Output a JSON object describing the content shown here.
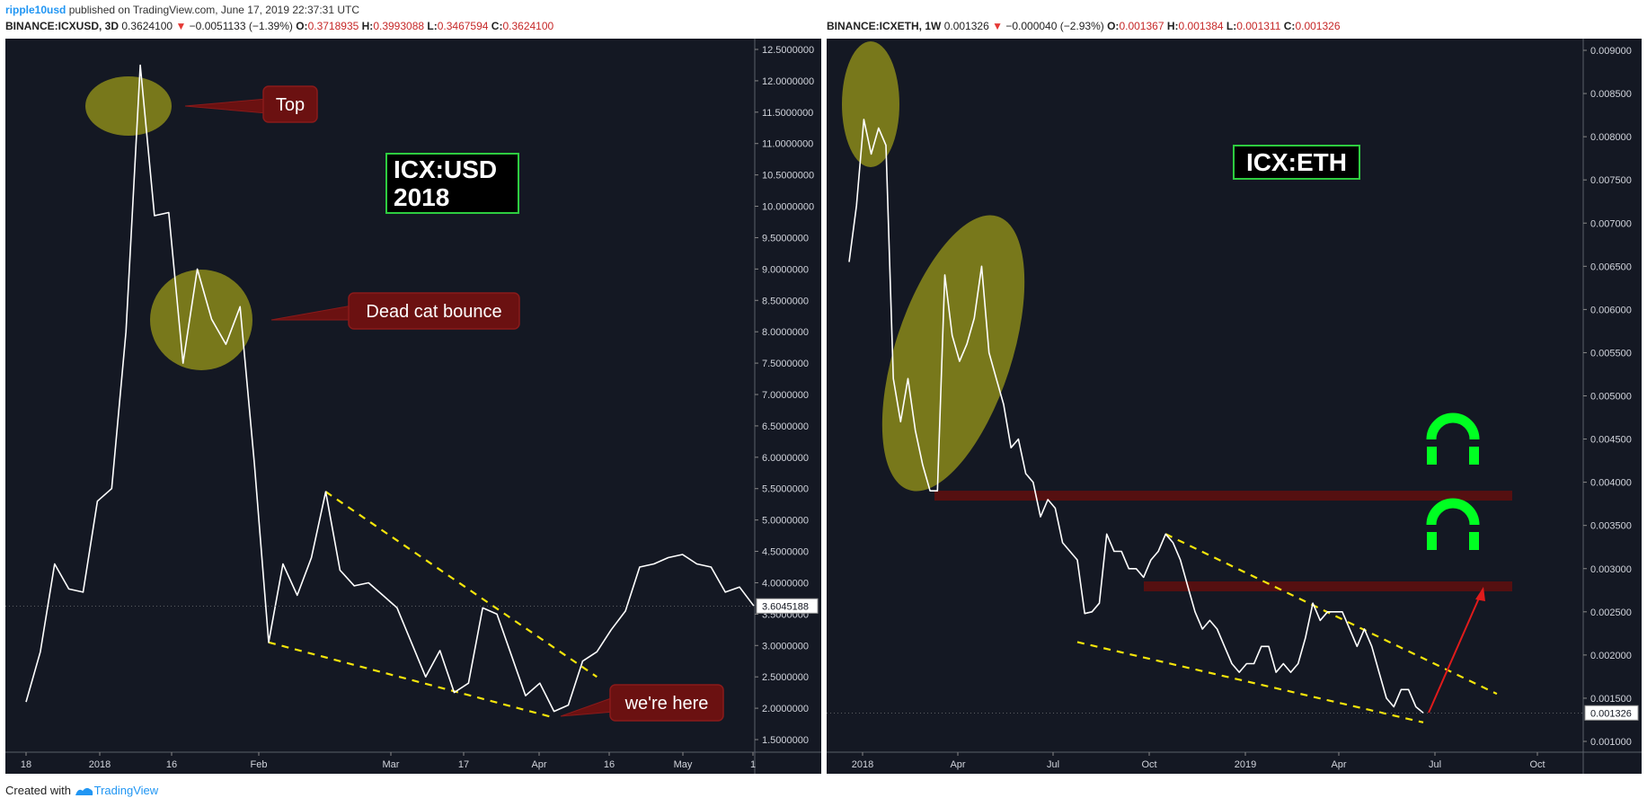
{
  "header": {
    "author": "ripple10usd",
    "published_text": "published on TradingView.com, June 17, 2019 22:37:31 UTC"
  },
  "left_legend": {
    "symbol": "BINANCE:ICXUSD, 3D",
    "price": "0.3624100",
    "arrow": "▼",
    "change": "−0.0051133 (−1.39%)",
    "o_label": "O:",
    "o": "0.3718935",
    "h_label": "H:",
    "h": "0.3993088",
    "l_label": "L:",
    "l": "0.3467594",
    "c_label": "C:",
    "c": "0.3624100"
  },
  "right_legend": {
    "symbol": "BINANCE:ICXETH, 1W",
    "price": "0.001326",
    "arrow": "▼",
    "change": "−0.000040 (−2.93%)",
    "o_label": "O:",
    "o": "0.001367",
    "h_label": "H:",
    "h": "0.001384",
    "l_label": "L:",
    "l": "0.001311",
    "c_label": "C:",
    "c": "0.001326"
  },
  "footer": {
    "created_with": "Created with",
    "brand": "TradingView"
  },
  "colors": {
    "bg": "#141823",
    "line": "#ffffff",
    "trend": "#f5e50b",
    "highlight": "#8a8a1a",
    "callout": "#6b1111",
    "label_border": "#2ecc40",
    "resistance": "#5c1010",
    "arrow": "#e01b1b",
    "up": "#00ff22"
  },
  "chart_data": [
    {
      "type": "line",
      "title": "ICX:USD 2018",
      "title_lines": [
        "ICX:USD",
        "2018"
      ],
      "x_ticks": [
        "18",
        "2018",
        "16",
        "Feb",
        "Mar",
        "17",
        "Apr",
        "16",
        "May",
        "1"
      ],
      "y_ticks": [
        "12.5000000",
        "12.0000000",
        "11.5000000",
        "11.0000000",
        "10.5000000",
        "10.0000000",
        "9.5000000",
        "9.0000000",
        "8.5000000",
        "8.0000000",
        "7.5000000",
        "7.0000000",
        "6.5000000",
        "6.0000000",
        "5.5000000",
        "5.0000000",
        "4.5000000",
        "4.0000000",
        "3.5000000",
        "3.0000000",
        "2.5000000",
        "2.0000000",
        "1.5000000"
      ],
      "ylim": [
        1.5,
        12.5
      ],
      "last_price": "3.6045188",
      "series": [
        {
          "values": [
            2.1,
            2.9,
            4.3,
            3.9,
            3.85,
            5.3,
            5.5,
            8.0,
            12.25,
            9.85,
            9.9,
            7.5,
            9.0,
            8.2,
            7.8,
            8.4,
            5.9,
            3.05,
            4.3,
            3.8,
            4.4,
            5.45,
            4.2,
            3.95,
            4.0,
            3.8,
            3.6,
            3.05,
            2.5,
            2.92,
            2.25,
            2.4,
            3.6,
            3.5,
            2.85,
            2.2,
            2.4,
            1.95,
            2.05,
            2.75,
            2.9,
            3.25,
            3.55,
            4.25,
            4.3,
            4.4,
            4.45,
            4.3,
            4.25,
            3.85,
            3.93,
            3.63
          ]
        }
      ],
      "trendlines": [
        {
          "from": [
            17,
            3.05
          ],
          "to": [
            37,
            1.85
          ]
        },
        {
          "from": [
            21,
            5.45
          ],
          "to": [
            40,
            2.5
          ]
        }
      ],
      "annotations": [
        {
          "text": "Top",
          "target": "peak"
        },
        {
          "text": "Dead cat bounce",
          "target": "rebound"
        },
        {
          "text": "we're here",
          "target": "low"
        }
      ]
    },
    {
      "type": "line",
      "title": "ICX:ETH",
      "x_ticks": [
        "2018",
        "Apr",
        "Jul",
        "Oct",
        "2019",
        "Apr",
        "Jul",
        "Oct"
      ],
      "y_ticks": [
        "0.009000",
        "0.008500",
        "0.008000",
        "0.007500",
        "0.007000",
        "0.006500",
        "0.006000",
        "0.005500",
        "0.005000",
        "0.004500",
        "0.004000",
        "0.003500",
        "0.003000",
        "0.002500",
        "0.002000",
        "0.001500",
        "0.001000"
      ],
      "ylim": [
        0.001,
        0.009
      ],
      "last_price": "0.001326",
      "series": [
        {
          "values": [
            0.00655,
            0.0072,
            0.0082,
            0.0078,
            0.0081,
            0.0079,
            0.0052,
            0.0047,
            0.0052,
            0.0046,
            0.0042,
            0.0039,
            0.0039,
            0.0064,
            0.0057,
            0.0054,
            0.0056,
            0.0059,
            0.0065,
            0.0055,
            0.0052,
            0.0049,
            0.0044,
            0.0045,
            0.0041,
            0.004,
            0.0036,
            0.0038,
            0.0037,
            0.0033,
            0.0032,
            0.0031,
            0.00248,
            0.0025,
            0.0026,
            0.0034,
            0.0032,
            0.0032,
            0.003,
            0.003,
            0.0029,
            0.0031,
            0.0032,
            0.0034,
            0.0033,
            0.0031,
            0.0028,
            0.0025,
            0.0023,
            0.0024,
            0.0023,
            0.0021,
            0.0019,
            0.0018,
            0.0019,
            0.0019,
            0.0021,
            0.0021,
            0.0018,
            0.0019,
            0.0018,
            0.0019,
            0.0022,
            0.0026,
            0.0024,
            0.0025,
            0.0025,
            0.0025,
            0.0023,
            0.0021,
            0.0023,
            0.0021,
            0.0018,
            0.0015,
            0.0014,
            0.0016,
            0.0016,
            0.0014,
            0.00133
          ]
        }
      ],
      "trendlines": [
        {
          "from": [
            31,
            0.00215
          ],
          "to": [
            78,
            0.00122
          ]
        },
        {
          "from": [
            43,
            0.0034
          ],
          "to": [
            88,
            0.00155
          ]
        }
      ],
      "resistance_levels": [
        0.00385,
        0.0028
      ],
      "annotations": [
        {
          "text": "red arrow up toward 0.0028 resistance"
        }
      ]
    }
  ]
}
